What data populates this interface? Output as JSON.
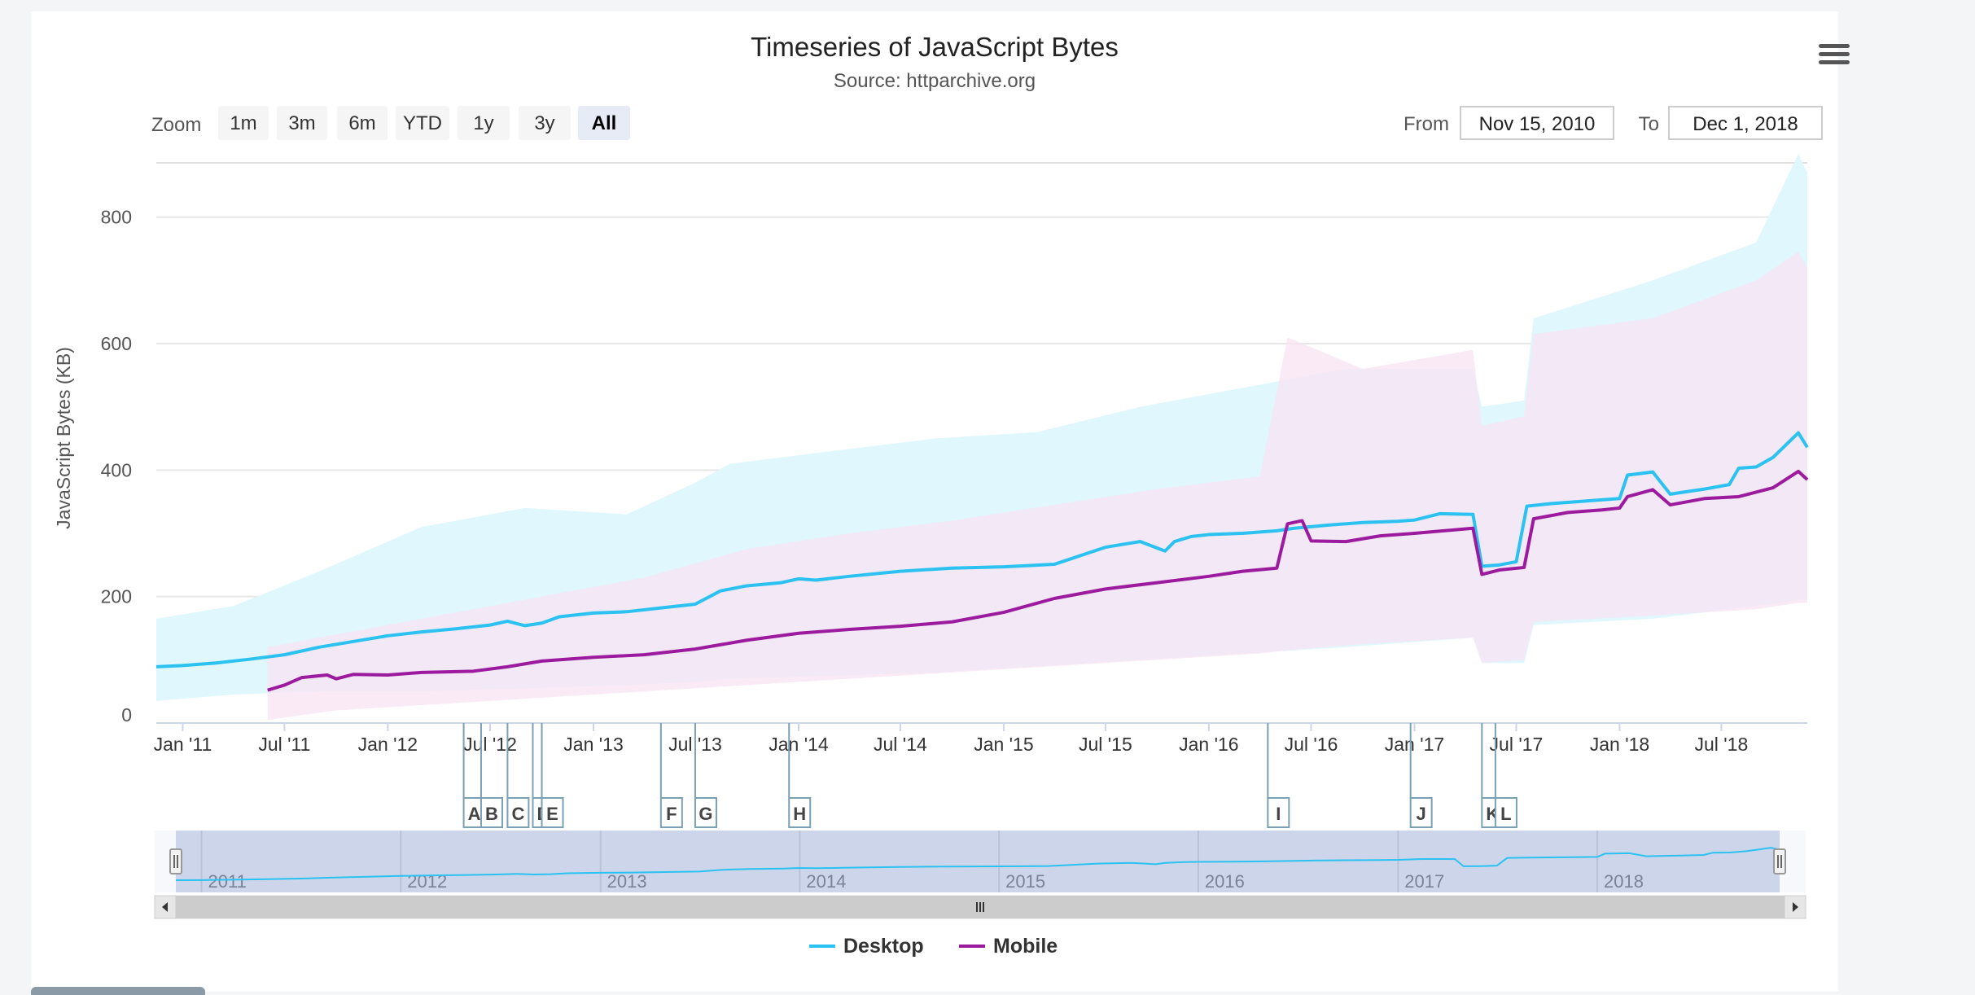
{
  "toolbar": {
    "zoom_label": "Zoom",
    "zoom_buttons": [
      "1m",
      "3m",
      "6m",
      "YTD",
      "1y",
      "3y",
      "All"
    ],
    "active_zoom": "All",
    "from_label": "From",
    "from_value": "Nov 15, 2010",
    "to_label": "To",
    "to_value": "Dec 1, 2018"
  },
  "menu_icon": "hamburger-menu-icon",
  "chart_data": {
    "type": "line",
    "title": "Timeseries of JavaScript Bytes",
    "subtitle": "Source: httparchive.org",
    "ylabel": "JavaScript Bytes (KB)",
    "ylim": [
      0,
      900
    ],
    "yticks": [
      0,
      200,
      400,
      600,
      800
    ],
    "xlim": [
      "2010-11-15",
      "2018-12-01"
    ],
    "xticks": [
      {
        "date": "2011-01-01",
        "label": "Jan '11"
      },
      {
        "date": "2011-07-01",
        "label": "Jul '11"
      },
      {
        "date": "2012-01-01",
        "label": "Jan '12"
      },
      {
        "date": "2012-07-01",
        "label": "Jul '12"
      },
      {
        "date": "2013-01-01",
        "label": "Jan '13"
      },
      {
        "date": "2013-07-01",
        "label": "Jul '13"
      },
      {
        "date": "2014-01-01",
        "label": "Jan '14"
      },
      {
        "date": "2014-07-01",
        "label": "Jul '14"
      },
      {
        "date": "2015-01-01",
        "label": "Jan '15"
      },
      {
        "date": "2015-07-01",
        "label": "Jul '15"
      },
      {
        "date": "2016-01-01",
        "label": "Jan '16"
      },
      {
        "date": "2016-07-01",
        "label": "Jul '16"
      },
      {
        "date": "2017-01-01",
        "label": "Jan '17"
      },
      {
        "date": "2017-07-01",
        "label": "Jul '17"
      },
      {
        "date": "2018-01-01",
        "label": "Jan '18"
      },
      {
        "date": "2018-07-01",
        "label": "Jul '18"
      }
    ],
    "grid": true,
    "legend_position": "bottom-center",
    "series": [
      {
        "name": "Desktop",
        "color": "#2bc2f2",
        "points": [
          [
            "2010-11-15",
            89
          ],
          [
            "2011-01-01",
            91
          ],
          [
            "2011-03-01",
            95
          ],
          [
            "2011-05-01",
            101
          ],
          [
            "2011-07-01",
            108
          ],
          [
            "2011-09-01",
            120
          ],
          [
            "2011-11-01",
            129
          ],
          [
            "2012-01-01",
            138
          ],
          [
            "2012-03-01",
            144
          ],
          [
            "2012-05-01",
            149
          ],
          [
            "2012-07-01",
            155
          ],
          [
            "2012-08-01",
            161
          ],
          [
            "2012-09-01",
            154
          ],
          [
            "2012-10-01",
            158
          ],
          [
            "2012-11-01",
            168
          ],
          [
            "2013-01-01",
            174
          ],
          [
            "2013-03-01",
            176
          ],
          [
            "2013-05-01",
            182
          ],
          [
            "2013-07-01",
            188
          ],
          [
            "2013-08-15",
            209
          ],
          [
            "2013-10-01",
            217
          ],
          [
            "2013-12-01",
            222
          ],
          [
            "2014-01-01",
            228
          ],
          [
            "2014-02-01",
            226
          ],
          [
            "2014-04-01",
            232
          ],
          [
            "2014-07-01",
            240
          ],
          [
            "2014-10-01",
            245
          ],
          [
            "2015-01-01",
            247
          ],
          [
            "2015-04-01",
            251
          ],
          [
            "2015-07-01",
            278
          ],
          [
            "2015-09-01",
            287
          ],
          [
            "2015-10-15",
            272
          ],
          [
            "2015-11-01",
            287
          ],
          [
            "2015-12-01",
            295
          ],
          [
            "2016-01-01",
            298
          ],
          [
            "2016-03-01",
            300
          ],
          [
            "2016-05-01",
            304
          ],
          [
            "2016-06-01",
            308
          ],
          [
            "2016-08-01",
            313
          ],
          [
            "2016-10-01",
            317
          ],
          [
            "2016-12-01",
            319
          ],
          [
            "2017-01-01",
            321
          ],
          [
            "2017-02-15",
            331
          ],
          [
            "2017-04-15",
            330
          ],
          [
            "2017-05-01",
            248
          ],
          [
            "2017-06-01",
            250
          ],
          [
            "2017-07-01",
            255
          ],
          [
            "2017-07-20",
            343
          ],
          [
            "2017-09-01",
            347
          ],
          [
            "2017-11-01",
            351
          ],
          [
            "2018-01-01",
            355
          ],
          [
            "2018-01-15",
            392
          ],
          [
            "2018-03-01",
            397
          ],
          [
            "2018-04-01",
            362
          ],
          [
            "2018-06-01",
            370
          ],
          [
            "2018-07-15",
            377
          ],
          [
            "2018-08-01",
            403
          ],
          [
            "2018-09-01",
            405
          ],
          [
            "2018-10-01",
            420
          ],
          [
            "2018-11-15",
            459
          ],
          [
            "2018-12-01",
            436
          ]
        ]
      },
      {
        "name": "Mobile",
        "color": "#9b1a9e",
        "points": [
          [
            "2011-06-01",
            52
          ],
          [
            "2011-07-01",
            60
          ],
          [
            "2011-08-01",
            72
          ],
          [
            "2011-09-15",
            76
          ],
          [
            "2011-10-01",
            70
          ],
          [
            "2011-11-01",
            77
          ],
          [
            "2012-01-01",
            76
          ],
          [
            "2012-03-01",
            80
          ],
          [
            "2012-06-01",
            82
          ],
          [
            "2012-08-01",
            89
          ],
          [
            "2012-10-01",
            98
          ],
          [
            "2013-01-01",
            104
          ],
          [
            "2013-04-01",
            108
          ],
          [
            "2013-07-01",
            117
          ],
          [
            "2013-10-01",
            131
          ],
          [
            "2014-01-01",
            142
          ],
          [
            "2014-04-01",
            148
          ],
          [
            "2014-07-01",
            153
          ],
          [
            "2014-10-01",
            160
          ],
          [
            "2015-01-01",
            175
          ],
          [
            "2015-04-01",
            197
          ],
          [
            "2015-07-01",
            212
          ],
          [
            "2015-10-01",
            222
          ],
          [
            "2016-01-01",
            232
          ],
          [
            "2016-03-01",
            240
          ],
          [
            "2016-05-01",
            245
          ],
          [
            "2016-05-20",
            315
          ],
          [
            "2016-06-15",
            320
          ],
          [
            "2016-07-01",
            288
          ],
          [
            "2016-09-01",
            287
          ],
          [
            "2016-11-01",
            296
          ],
          [
            "2017-01-01",
            300
          ],
          [
            "2017-04-15",
            308
          ],
          [
            "2017-05-01",
            235
          ],
          [
            "2017-06-01",
            242
          ],
          [
            "2017-07-15",
            246
          ],
          [
            "2017-08-01",
            323
          ],
          [
            "2017-10-01",
            333
          ],
          [
            "2017-12-01",
            337
          ],
          [
            "2018-01-01",
            340
          ],
          [
            "2018-01-15",
            358
          ],
          [
            "2018-03-01",
            369
          ],
          [
            "2018-04-01",
            345
          ],
          [
            "2018-06-01",
            355
          ],
          [
            "2018-08-01",
            358
          ],
          [
            "2018-10-01",
            372
          ],
          [
            "2018-11-15",
            398
          ],
          [
            "2018-12-01",
            385
          ]
        ]
      }
    ],
    "ranges": [
      {
        "name": "Desktop",
        "color": "#dff7fd",
        "points": [
          [
            "2010-11-15",
            35,
            165
          ],
          [
            "2011-04-01",
            45,
            185
          ],
          [
            "2011-09-01",
            50,
            240
          ],
          [
            "2012-03-01",
            50,
            310
          ],
          [
            "2012-09-01",
            55,
            340
          ],
          [
            "2013-03-01",
            60,
            330
          ],
          [
            "2013-07-01",
            65,
            380
          ],
          [
            "2013-09-01",
            70,
            410
          ],
          [
            "2014-03-01",
            75,
            430
          ],
          [
            "2014-09-01",
            80,
            450
          ],
          [
            "2015-03-01",
            90,
            460
          ],
          [
            "2015-09-01",
            100,
            500
          ],
          [
            "2016-03-01",
            110,
            530
          ],
          [
            "2016-09-01",
            120,
            560
          ],
          [
            "2017-04-15",
            135,
            560
          ],
          [
            "2017-05-01",
            95,
            500
          ],
          [
            "2017-07-15",
            95,
            510
          ],
          [
            "2017-08-01",
            155,
            640
          ],
          [
            "2018-03-01",
            165,
            700
          ],
          [
            "2018-09-01",
            185,
            760
          ],
          [
            "2018-11-15",
            195,
            900
          ],
          [
            "2018-12-01",
            195,
            870
          ]
        ]
      },
      {
        "name": "Mobile",
        "color": "#f8e3f3",
        "points": [
          [
            "2011-06-01",
            5,
            120
          ],
          [
            "2011-10-01",
            20,
            140
          ],
          [
            "2012-04-01",
            30,
            170
          ],
          [
            "2012-10-01",
            40,
            200
          ],
          [
            "2013-04-01",
            50,
            230
          ],
          [
            "2013-10-01",
            60,
            275
          ],
          [
            "2014-04-01",
            70,
            300
          ],
          [
            "2014-10-01",
            80,
            320
          ],
          [
            "2015-04-01",
            90,
            345
          ],
          [
            "2015-10-01",
            100,
            370
          ],
          [
            "2016-04-01",
            110,
            390
          ],
          [
            "2016-05-20",
            115,
            610
          ],
          [
            "2016-10-01",
            125,
            560
          ],
          [
            "2017-04-15",
            135,
            590
          ],
          [
            "2017-05-01",
            95,
            470
          ],
          [
            "2017-07-15",
            100,
            485
          ],
          [
            "2017-08-01",
            160,
            615
          ],
          [
            "2018-03-01",
            170,
            640
          ],
          [
            "2018-09-01",
            180,
            700
          ],
          [
            "2018-11-15",
            190,
            745
          ],
          [
            "2018-12-01",
            190,
            720
          ]
        ]
      }
    ],
    "flags": [
      {
        "date": "2012-05-15",
        "label": "A"
      },
      {
        "date": "2012-06-15",
        "label": "B"
      },
      {
        "date": "2012-08-01",
        "label": "C"
      },
      {
        "date": "2012-09-15",
        "label": "D"
      },
      {
        "date": "2012-10-01",
        "label": "E"
      },
      {
        "date": "2013-05-01",
        "label": "F"
      },
      {
        "date": "2013-07-01",
        "label": "G"
      },
      {
        "date": "2013-12-15",
        "label": "H"
      },
      {
        "date": "2016-04-15",
        "label": "I"
      },
      {
        "date": "2016-12-25",
        "label": "J"
      },
      {
        "date": "2017-05-01",
        "label": "K"
      },
      {
        "date": "2017-05-25",
        "label": "L"
      }
    ],
    "navigator_labels": [
      "2011",
      "2012",
      "2013",
      "2014",
      "2015",
      "2016",
      "2017",
      "2018"
    ],
    "navigator_series": "Desktop"
  }
}
